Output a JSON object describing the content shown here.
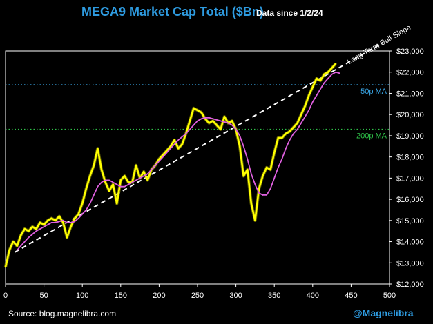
{
  "chart_data": {
    "type": "line",
    "title": "MEGA9 Market Cap Total ($Bn)",
    "subtitle": "Data since 1/2/24",
    "xlabel": "",
    "ylabel": "",
    "xlim": [
      0,
      500
    ],
    "ylim": [
      12000,
      23000
    ],
    "x_ticks": [
      0,
      50,
      100,
      150,
      200,
      250,
      300,
      350,
      400,
      450,
      500
    ],
    "y_ticks": [
      12000,
      13000,
      14000,
      15000,
      16000,
      17000,
      18000,
      19000,
      20000,
      21000,
      22000,
      23000
    ],
    "y_tick_labels": [
      "$12,000",
      "$13,000",
      "$14,000",
      "$15,000",
      "$16,000",
      "$17,000",
      "$18,000",
      "$19,000",
      "$20,000",
      "$21,000",
      "$22,000",
      "$23,000"
    ],
    "x_tick_labels": [
      "0",
      "50",
      "100",
      "150",
      "200",
      "250",
      "300",
      "350",
      "400",
      "450",
      "500"
    ],
    "grid": false,
    "series": [
      {
        "name": "MEGA9 Market Cap",
        "color": "#ffff00",
        "x": [
          0,
          5,
          10,
          15,
          20,
          25,
          30,
          35,
          40,
          45,
          50,
          55,
          60,
          65,
          70,
          75,
          80,
          85,
          90,
          95,
          100,
          105,
          110,
          115,
          120,
          125,
          130,
          135,
          140,
          145,
          150,
          155,
          160,
          165,
          170,
          175,
          180,
          185,
          190,
          195,
          200,
          205,
          210,
          215,
          220,
          225,
          230,
          235,
          240,
          245,
          250,
          255,
          260,
          265,
          270,
          275,
          280,
          285,
          290,
          295,
          300,
          305,
          310,
          315,
          320,
          325,
          330,
          335,
          340,
          345,
          350,
          355,
          360,
          365,
          370,
          375,
          380,
          385,
          390,
          395,
          400,
          405,
          410,
          415,
          420,
          425,
          430
        ],
        "values": [
          12800,
          13600,
          14000,
          13800,
          14300,
          14600,
          14500,
          14700,
          14600,
          14900,
          14800,
          15000,
          15100,
          15000,
          15200,
          14900,
          14200,
          14700,
          15100,
          15300,
          15800,
          16500,
          17100,
          17600,
          18400,
          17400,
          16800,
          16400,
          16700,
          15800,
          16900,
          17100,
          16800,
          16800,
          17600,
          17000,
          17300,
          16900,
          17400,
          17600,
          17900,
          18100,
          18300,
          18500,
          18800,
          18400,
          18600,
          19100,
          19700,
          20300,
          20200,
          20100,
          19800,
          19600,
          19700,
          19500,
          19300,
          19900,
          19600,
          19700,
          19300,
          18500,
          17100,
          17400,
          15800,
          15000,
          16500,
          17100,
          17500,
          17400,
          18200,
          18900,
          18900,
          19100,
          19200,
          19400,
          19600,
          20000,
          20400,
          20900,
          21300,
          21700,
          21600,
          21900,
          22000,
          22200,
          22400
        ]
      },
      {
        "name": "50p MA",
        "color": "#e060e0",
        "x": [
          15,
          20,
          25,
          30,
          35,
          40,
          45,
          50,
          55,
          60,
          65,
          70,
          75,
          80,
          85,
          90,
          95,
          100,
          105,
          110,
          115,
          120,
          125,
          130,
          135,
          140,
          145,
          150,
          155,
          160,
          165,
          170,
          175,
          180,
          185,
          190,
          195,
          200,
          205,
          210,
          215,
          220,
          225,
          230,
          235,
          240,
          245,
          250,
          255,
          260,
          265,
          270,
          275,
          280,
          285,
          290,
          295,
          300,
          305,
          310,
          315,
          320,
          325,
          330,
          335,
          340,
          345,
          350,
          355,
          360,
          365,
          370,
          375,
          380,
          385,
          390,
          395,
          400,
          405,
          410,
          415,
          420,
          425,
          430,
          435
        ],
        "values": [
          13600,
          13800,
          14000,
          14200,
          14350,
          14500,
          14600,
          14700,
          14800,
          14900,
          14900,
          14950,
          15000,
          14900,
          14900,
          14950,
          15100,
          15300,
          15500,
          15800,
          16200,
          16600,
          16800,
          16900,
          16900,
          16800,
          16700,
          16600,
          16600,
          16700,
          16800,
          16900,
          17000,
          17100,
          17200,
          17400,
          17600,
          17800,
          18000,
          18200,
          18400,
          18600,
          18800,
          18950,
          19100,
          19300,
          19500,
          19700,
          19800,
          19850,
          19850,
          19800,
          19750,
          19700,
          19650,
          19600,
          19500,
          19300,
          19000,
          18500,
          17900,
          17200,
          16700,
          16300,
          16200,
          16200,
          16500,
          17000,
          17500,
          17900,
          18400,
          18800,
          19100,
          19300,
          19600,
          19900,
          20200,
          20600,
          20900,
          21200,
          21500,
          21700,
          21900,
          22000,
          21950
        ]
      }
    ],
    "reference_lines": [
      {
        "label": "50p MA",
        "value": 21400,
        "color": "#3aa8e8",
        "style": "dotted"
      },
      {
        "label": "200p MA",
        "value": 19300,
        "color": "#2fc44a",
        "style": "dotted"
      }
    ],
    "trend_line": {
      "label": "Long Term Bull Slope",
      "x_start": 12,
      "y_start": 13500,
      "x_end": 492,
      "y_end": 23400,
      "color": "#ffffff",
      "style": "dashed"
    }
  },
  "source_note": "Source: blog.magnelibra.com",
  "handle": "@Magnelibra"
}
